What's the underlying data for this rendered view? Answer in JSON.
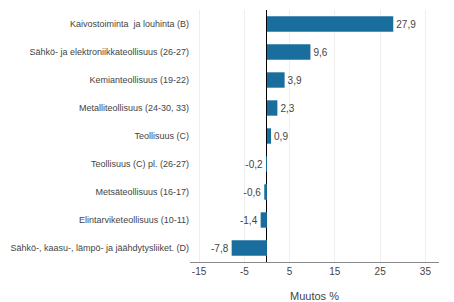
{
  "chart_data": {
    "type": "bar",
    "orientation": "horizontal",
    "categories": [
      "Sähkö-, kaasu-, lämpö- ja jäähdytysliiket. (D)",
      "Elintarviketeollisuus (10-11)",
      "Metsäteollisuus (16-17)",
      "Teollisuus (C) pl. (26-27)",
      "Teollisuus (C)",
      "Metalliteollisuus (24-30, 33)",
      "Kemianteollisuus (19-22)",
      "Sähkö- ja elektroniikkateollisuus (26-27)",
      "Kaivostoiminta  ja louhinta (B)"
    ],
    "values": [
      -7.8,
      -1.4,
      -0.6,
      -0.2,
      0.9,
      2.3,
      3.9,
      9.6,
      27.9
    ],
    "value_labels": [
      "-7,8",
      "-1,4",
      "-0,6",
      "-0,2",
      "0,9",
      "2,3",
      "3,9",
      "9,6",
      "27,9"
    ],
    "data_labels": true,
    "color": "#1a6e9e",
    "xlabel": "Muutos %",
    "xlim": [
      -17,
      38
    ],
    "xticks": [
      -15,
      -5,
      5,
      15,
      25,
      35
    ],
    "grid": true
  }
}
